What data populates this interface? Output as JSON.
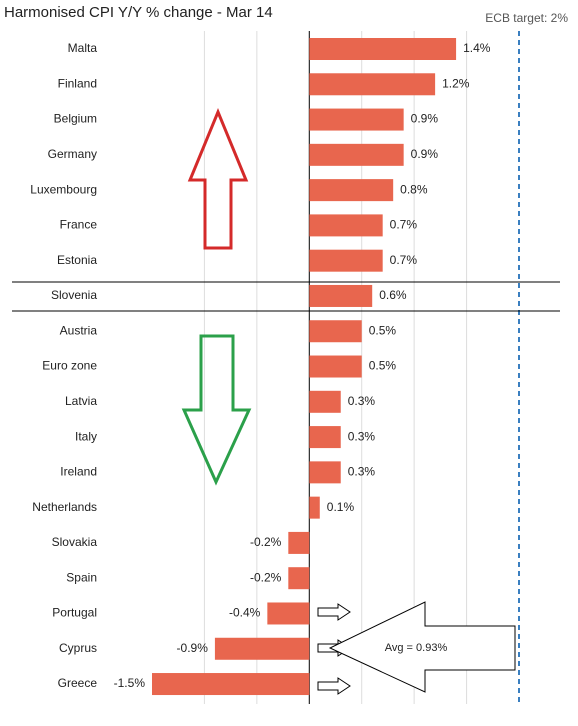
{
  "chart_data": {
    "type": "hbar",
    "title": "Harmonised CPI Y/Y % change - Mar 14",
    "target_label": "ECB target: 2%",
    "target": 2,
    "annotation": "Avg = 0.93%",
    "categories": [
      "Malta",
      "Finland",
      "Belgium",
      "Germany",
      "Luxembourg",
      "France",
      "Estonia",
      "Slovenia",
      "Austria",
      "Euro zone",
      "Latvia",
      "Italy",
      "Ireland",
      "Netherlands",
      "Slovakia",
      "Spain",
      "Portugal",
      "Cyprus",
      "Greece"
    ],
    "values": [
      1.4,
      1.2,
      0.9,
      0.9,
      0.8,
      0.7,
      0.7,
      0.6,
      0.5,
      0.5,
      0.3,
      0.3,
      0.3,
      0.1,
      -0.2,
      -0.2,
      -0.4,
      -0.9,
      -1.5
    ],
    "value_labels": [
      "1.4%",
      "1.2%",
      "0.9%",
      "0.9%",
      "0.8%",
      "0.7%",
      "0.7%",
      "0.6%",
      "0.5%",
      "0.5%",
      "0.3%",
      "0.3%",
      "0.3%",
      "0.1%",
      "-0.2%",
      "-0.2%",
      "-0.4%",
      "-0.9%",
      "-1.5%"
    ],
    "color": "#e8664e",
    "xlim": [
      -1.5,
      2
    ],
    "xgrid": [
      -1,
      -0.5,
      0.5,
      1,
      1.5
    ],
    "grid": true
  }
}
